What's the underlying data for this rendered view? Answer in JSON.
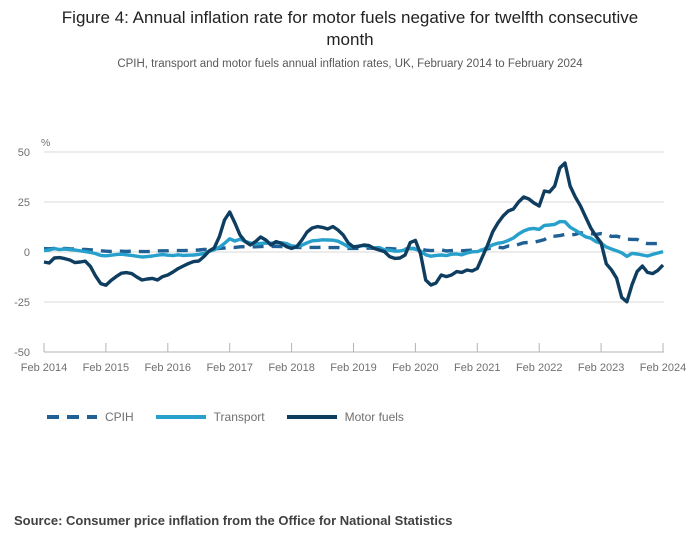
{
  "page": {
    "title": "Figure 4: Annual inflation rate for motor fuels negative for twelfth consecutive month",
    "subtitle": "CPIH, transport and motor fuels annual inflation rates, UK, February 2014 to February 2024",
    "source": "Source: Consumer price inflation from the Office for National Statistics"
  },
  "chart_data": {
    "type": "line",
    "title": "Figure 4: Annual inflation rate for motor fuels negative for twelfth consecutive month",
    "subtitle": "CPIH, transport and motor fuels annual inflation rates, UK, February 2014 to February 2024",
    "unit_label": "%",
    "ylim": [
      -50,
      50
    ],
    "y_ticks": [
      50,
      25,
      0,
      -25,
      -50
    ],
    "x_tick_labels": [
      "Feb 2014",
      "Feb 2015",
      "Feb 2016",
      "Feb 2017",
      "Feb 2018",
      "Feb 2019",
      "Feb 2020",
      "Feb 2021",
      "Feb 2022",
      "Feb 2023",
      "Feb 2024"
    ],
    "x_start": "Feb 2014",
    "x_end": "Feb 2024",
    "points_per_year": 12,
    "grid": true,
    "legend_position": "bottom",
    "colors": {
      "grid": "#d9d9d9",
      "axis": "#b3b3b3",
      "text": "#707071"
    },
    "series": [
      {
        "name": "CPIH",
        "style": "dashed",
        "color": "#206095",
        "values": [
          1.7,
          1.6,
          1.8,
          1.6,
          1.8,
          1.6,
          1.5,
          1.3,
          1.3,
          1.1,
          0.9,
          0.6,
          0.4,
          0.3,
          0.3,
          0.4,
          0.3,
          0.4,
          0.3,
          0.2,
          0.2,
          0.4,
          0.5,
          0.6,
          0.6,
          0.8,
          0.7,
          0.7,
          0.8,
          0.9,
          1.0,
          1.3,
          1.3,
          1.5,
          1.8,
          2.0,
          2.3,
          2.3,
          2.6,
          2.7,
          2.6,
          2.6,
          2.7,
          2.8,
          2.8,
          2.8,
          2.7,
          2.5,
          2.5,
          2.3,
          2.2,
          2.3,
          2.3,
          2.3,
          2.4,
          2.2,
          2.2,
          2.2,
          2.0,
          1.8,
          1.8,
          1.8,
          2.0,
          1.9,
          1.9,
          2.0,
          1.7,
          1.7,
          1.5,
          1.5,
          1.4,
          1.8,
          1.7,
          1.5,
          0.9,
          0.7,
          0.8,
          1.1,
          0.5,
          0.7,
          0.9,
          0.6,
          0.8,
          0.9,
          0.7,
          1.0,
          1.6,
          2.1,
          2.4,
          2.1,
          3.0,
          2.9,
          3.8,
          4.6,
          4.8,
          4.9,
          5.5,
          6.2,
          7.8,
          7.9,
          8.2,
          8.8,
          8.6,
          8.8,
          9.6,
          9.3,
          9.2,
          8.8,
          9.2,
          8.9,
          7.8,
          7.9,
          7.3,
          6.4,
          6.3,
          6.3,
          4.7,
          4.2,
          4.2,
          4.2,
          3.8
        ]
      },
      {
        "name": "Transport",
        "style": "solid",
        "color": "#27a0cc",
        "values": [
          0.7,
          1.0,
          1.7,
          1.2,
          1.5,
          1.2,
          1.0,
          0.6,
          0.2,
          -0.2,
          -0.8,
          -1.7,
          -1.9,
          -1.6,
          -1.3,
          -1.1,
          -1.4,
          -1.7,
          -2.1,
          -2.5,
          -2.3,
          -2.0,
          -1.6,
          -1.3,
          -1.6,
          -1.8,
          -1.4,
          -1.7,
          -1.6,
          -1.5,
          -1.2,
          -0.7,
          0.3,
          1.1,
          2.4,
          4.3,
          6.6,
          5.5,
          6.4,
          5.3,
          4.5,
          4.0,
          4.3,
          4.5,
          4.4,
          4.6,
          4.6,
          4.2,
          3.1,
          2.8,
          3.4,
          4.6,
          5.6,
          5.8,
          6.1,
          6.0,
          5.9,
          5.4,
          4.1,
          2.6,
          2.6,
          3.0,
          3.2,
          2.7,
          2.0,
          2.2,
          1.1,
          0.9,
          0.4,
          0.5,
          1.1,
          1.8,
          1.4,
          0.5,
          -1.4,
          -2.1,
          -1.7,
          -1.5,
          -1.8,
          -1.1,
          -1.0,
          -1.4,
          -0.5,
          0.1,
          0.2,
          1.1,
          2.3,
          3.6,
          4.4,
          4.8,
          5.8,
          7.0,
          9.0,
          10.5,
          11.5,
          11.8,
          11.3,
          13.3,
          13.5,
          13.8,
          15.2,
          15.1,
          12.4,
          10.9,
          9.2,
          7.6,
          6.9,
          5.2,
          4.4,
          2.5,
          1.5,
          0.6,
          -0.4,
          -2.2,
          -0.7,
          -1.0,
          -1.5,
          -2.0,
          -1.2,
          -0.5,
          0.2
        ]
      },
      {
        "name": "Motor fuels",
        "style": "solid",
        "color": "#0f3d5f",
        "values": [
          -5.0,
          -5.5,
          -3.0,
          -2.8,
          -3.3,
          -4.0,
          -5.3,
          -5.0,
          -4.6,
          -7.2,
          -12.0,
          -15.8,
          -16.6,
          -14.2,
          -12.3,
          -10.6,
          -10.3,
          -10.8,
          -12.5,
          -14.0,
          -13.5,
          -13.2,
          -14.0,
          -12.3,
          -11.5,
          -10.0,
          -8.3,
          -7.0,
          -5.8,
          -4.8,
          -4.5,
          -2.3,
          0.5,
          2.0,
          7.7,
          16.0,
          20.0,
          14.5,
          8.5,
          5.2,
          3.5,
          5.2,
          7.5,
          6.0,
          3.5,
          5.2,
          4.3,
          2.7,
          1.8,
          2.7,
          6.0,
          10.0,
          12.0,
          12.7,
          12.3,
          11.5,
          12.7,
          11.0,
          8.5,
          4.5,
          2.5,
          2.8,
          3.5,
          3.2,
          1.8,
          1.0,
          0.2,
          -2.3,
          -3.2,
          -3.0,
          -1.5,
          4.7,
          5.8,
          -1.0,
          -14.0,
          -16.5,
          -15.5,
          -11.5,
          -12.3,
          -11.5,
          -9.8,
          -10.2,
          -9.0,
          -9.5,
          -8.2,
          -2.3,
          3.5,
          10.2,
          14.5,
          18.0,
          20.5,
          21.5,
          25.0,
          27.5,
          26.5,
          24.5,
          23.0,
          30.5,
          30.0,
          33.0,
          42.0,
          44.5,
          33.0,
          27.5,
          23.0,
          17.5,
          12.0,
          8.0,
          4.6,
          -5.9,
          -8.9,
          -13.1,
          -22.7,
          -24.9,
          -16.4,
          -9.7,
          -7.0,
          -10.2,
          -10.8,
          -9.2,
          -6.5
        ]
      }
    ]
  }
}
